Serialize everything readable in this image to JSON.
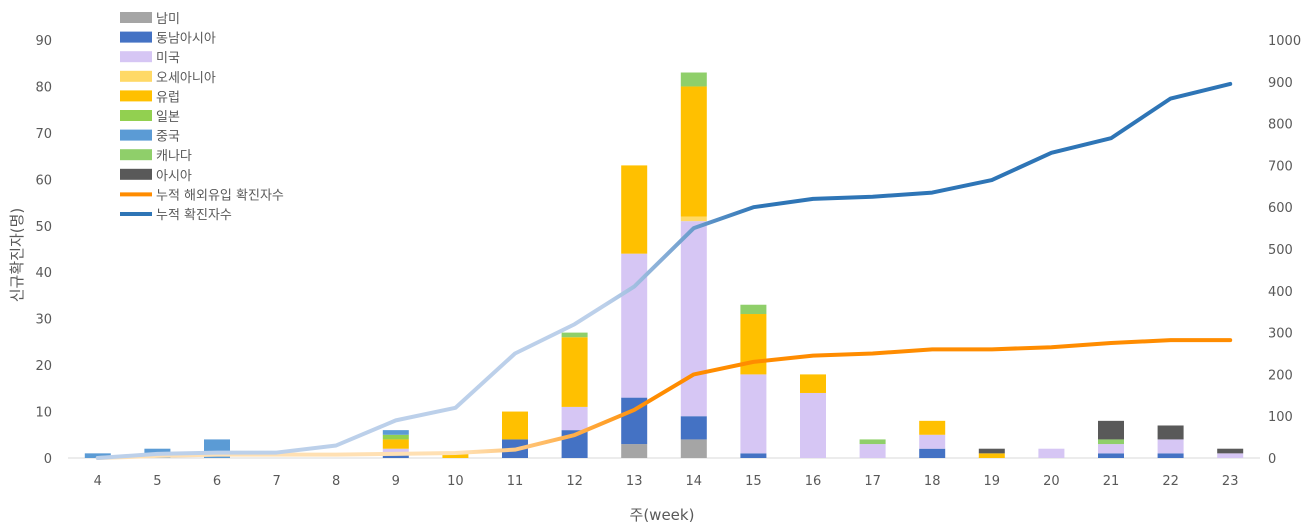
{
  "chart_data": {
    "type": "bar",
    "title": "",
    "xlabel": "주(week)",
    "ylabel": "신규확진자(명)",
    "ylim": [
      0,
      90
    ],
    "y2lim": [
      0,
      1000
    ],
    "y_ticks": [
      0,
      10,
      20,
      30,
      40,
      50,
      60,
      70,
      80,
      90
    ],
    "y2_ticks": [
      0,
      100,
      200,
      300,
      400,
      500,
      600,
      700,
      800,
      900,
      1000
    ],
    "categories": [
      "4",
      "5",
      "6",
      "7",
      "8",
      "9",
      "10",
      "11",
      "12",
      "13",
      "14",
      "15",
      "16",
      "17",
      "18",
      "19",
      "20",
      "21",
      "22",
      "23"
    ],
    "stacked": true,
    "legend_position": "top-left",
    "grid": false,
    "series": [
      {
        "name": "남미",
        "type": "bar",
        "color": "#a5a5a5",
        "values": [
          0,
          0,
          0,
          0,
          0,
          0,
          0,
          0,
          0,
          3,
          4,
          0,
          0,
          0,
          0,
          0,
          0,
          0,
          0,
          0
        ]
      },
      {
        "name": "동남아시아",
        "type": "bar",
        "color": "#4472c4",
        "values": [
          0,
          0,
          0,
          0,
          0,
          1,
          0,
          4,
          6,
          10,
          5,
          1,
          0,
          0,
          2,
          0,
          0,
          1,
          1,
          0
        ]
      },
      {
        "name": "미국",
        "type": "bar",
        "color": "#d6c6f4",
        "values": [
          0,
          0,
          0,
          0,
          0,
          1,
          0,
          0,
          5,
          31,
          42,
          17,
          14,
          3,
          3,
          0,
          2,
          2,
          3,
          1
        ]
      },
      {
        "name": "오세아니아",
        "type": "bar",
        "color": "#ffd966",
        "values": [
          0,
          0,
          0,
          0,
          0,
          0,
          0,
          0,
          0,
          0,
          1,
          0,
          0,
          0,
          0,
          0,
          0,
          0,
          0,
          0
        ]
      },
      {
        "name": "유럽",
        "type": "bar",
        "color": "#ffc000",
        "values": [
          0,
          0,
          0,
          0,
          0,
          2,
          1,
          6,
          15,
          19,
          28,
          13,
          4,
          0,
          3,
          1,
          0,
          0,
          0,
          0
        ]
      },
      {
        "name": "일본",
        "type": "bar",
        "color": "#92d050",
        "values": [
          0,
          0,
          0,
          0,
          0,
          1,
          0,
          0,
          0,
          0,
          0,
          0,
          0,
          0,
          0,
          0,
          0,
          0,
          0,
          0
        ]
      },
      {
        "name": "중국",
        "type": "bar",
        "color": "#5b9bd5",
        "values": [
          1,
          2,
          4,
          0,
          0,
          1,
          0,
          0,
          0,
          0,
          0,
          0,
          0,
          0,
          0,
          0,
          0,
          0,
          0,
          0
        ]
      },
      {
        "name": "캐나다",
        "type": "bar",
        "color": "#8fcf6a",
        "values": [
          0,
          0,
          0,
          0,
          0,
          0,
          0,
          0,
          1,
          0,
          3,
          2,
          0,
          1,
          0,
          0,
          0,
          1,
          0,
          0
        ]
      },
      {
        "name": "아시아",
        "type": "bar",
        "color": "#595959",
        "values": [
          0,
          0,
          0,
          0,
          0,
          0,
          0,
          0,
          0,
          0,
          0,
          0,
          0,
          0,
          0,
          1,
          0,
          4,
          3,
          1
        ]
      },
      {
        "name": "누적 해외유입 확진자수",
        "type": "line",
        "axis": "right",
        "color": "#ff8c00",
        "faded_color": "#ffe0b3",
        "values": [
          0,
          5,
          8,
          8,
          8,
          10,
          12,
          20,
          55,
          115,
          200,
          230,
          245,
          250,
          260,
          260,
          265,
          275,
          282,
          282
        ]
      },
      {
        "name": "누적 확진자수",
        "type": "line",
        "axis": "right",
        "color": "#2e75b6",
        "faded_color": "#bcd0ea",
        "values": [
          0,
          10,
          13,
          13,
          30,
          90,
          120,
          250,
          320,
          410,
          550,
          600,
          620,
          625,
          635,
          665,
          730,
          765,
          860,
          895
        ]
      }
    ]
  }
}
